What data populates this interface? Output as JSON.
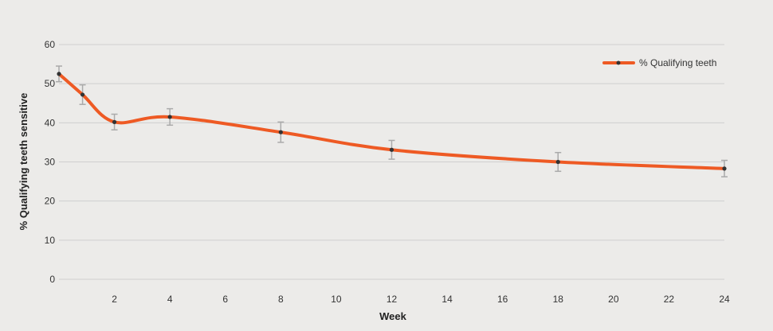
{
  "chart_data": {
    "type": "line",
    "xlabel": "Week",
    "ylabel": "% Qualifying teeth sensitive",
    "xlim": [
      0,
      24
    ],
    "ylim": [
      0,
      60
    ],
    "x_ticks": [
      2,
      4,
      6,
      8,
      10,
      12,
      14,
      16,
      18,
      20,
      22,
      24
    ],
    "y_ticks": [
      0,
      10,
      20,
      30,
      40,
      50,
      60
    ],
    "grid": "horizontal",
    "legend_position": "top-right",
    "series": [
      {
        "name": "% Qualifying teeth",
        "color": "#ee5a24",
        "marker_color": "#333333",
        "points": [
          {
            "x": 0,
            "y": 52.5,
            "err": 2.0
          },
          {
            "x": 0.85,
            "y": 47.2,
            "err": 2.5
          },
          {
            "x": 2,
            "y": 40.2,
            "err": 2.0
          },
          {
            "x": 4,
            "y": 41.5,
            "err": 2.1
          },
          {
            "x": 8,
            "y": 37.6,
            "err": 2.6
          },
          {
            "x": 12,
            "y": 33.1,
            "err": 2.4
          },
          {
            "x": 18,
            "y": 30.0,
            "err": 2.4
          },
          {
            "x": 24,
            "y": 28.3,
            "err": 2.1
          }
        ]
      }
    ],
    "error_bar_color": "#aaaaaa"
  }
}
